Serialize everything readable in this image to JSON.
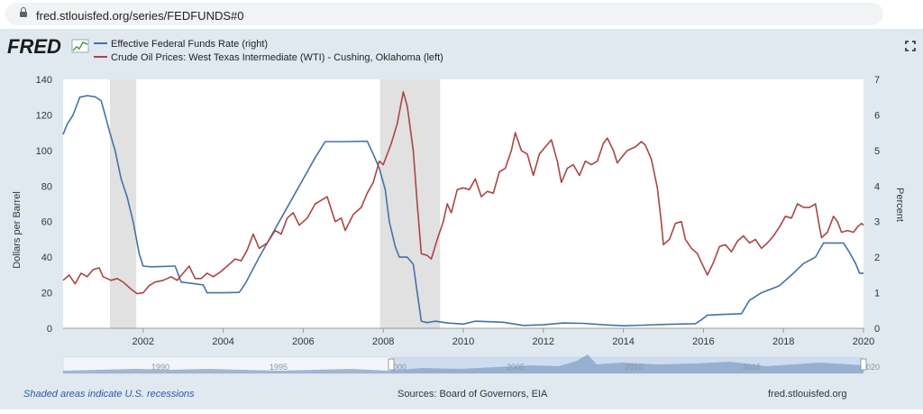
{
  "browser": {
    "url": "fred.stlouisfed.org/series/FEDFUNDS#0"
  },
  "header": {
    "logo_text": "FRED",
    "fullscreen_icon": "expand-icon"
  },
  "footer": {
    "recession_note": "Shaded areas indicate U.S. recessions",
    "sources": "Sources: Board of Governors, EIA",
    "site": "fred.stlouisfed.org"
  },
  "navigator": {
    "tick_labels": [
      "1990",
      "1995",
      "2000",
      "2005",
      "2010",
      "2015",
      "2020"
    ]
  },
  "colors": {
    "fedfunds": "#4572a7",
    "oil": "#aa4643",
    "recession": "#e1e1e1",
    "panel": "#e1e9f0"
  },
  "chart_data": {
    "type": "line",
    "x_ticks": [
      "2002",
      "2004",
      "2006",
      "2008",
      "2010",
      "2012",
      "2014",
      "2016",
      "2018",
      "2020"
    ],
    "y_left": {
      "label": "Dollars per Barrel",
      "ticks": [
        "0",
        "20",
        "40",
        "60",
        "80",
        "100",
        "120",
        "140"
      ],
      "range": [
        0,
        140
      ]
    },
    "y_right": {
      "label": "Percent",
      "ticks": [
        "0",
        "1",
        "2",
        "3",
        "4",
        "5",
        "6",
        "7"
      ],
      "range": [
        0,
        7
      ]
    },
    "x_range": [
      2000.0,
      2020.0
    ],
    "recessions": [
      [
        2001.17,
        2001.83
      ],
      [
        2007.92,
        2009.42
      ]
    ],
    "series": [
      {
        "name": "Effective Federal Funds Rate (right)",
        "axis": "right",
        "points": [
          [
            2000.0,
            5.45
          ],
          [
            2000.1,
            5.73
          ],
          [
            2000.25,
            6.0
          ],
          [
            2000.42,
            6.5
          ],
          [
            2000.6,
            6.54
          ],
          [
            2000.8,
            6.51
          ],
          [
            2000.95,
            6.4
          ],
          [
            2001.05,
            6.0
          ],
          [
            2001.17,
            5.5
          ],
          [
            2001.3,
            5.0
          ],
          [
            2001.45,
            4.2
          ],
          [
            2001.6,
            3.7
          ],
          [
            2001.75,
            3.0
          ],
          [
            2001.9,
            2.1
          ],
          [
            2002.0,
            1.75
          ],
          [
            2002.2,
            1.73
          ],
          [
            2002.5,
            1.74
          ],
          [
            2002.8,
            1.75
          ],
          [
            2002.95,
            1.3
          ],
          [
            2003.3,
            1.25
          ],
          [
            2003.5,
            1.22
          ],
          [
            2003.6,
            1.0
          ],
          [
            2004.0,
            1.0
          ],
          [
            2004.4,
            1.01
          ],
          [
            2004.55,
            1.25
          ],
          [
            2004.9,
            2.0
          ],
          [
            2005.2,
            2.6
          ],
          [
            2005.5,
            3.2
          ],
          [
            2005.8,
            3.8
          ],
          [
            2006.1,
            4.4
          ],
          [
            2006.3,
            4.8
          ],
          [
            2006.55,
            5.25
          ],
          [
            2007.0,
            5.25
          ],
          [
            2007.6,
            5.26
          ],
          [
            2007.75,
            4.9
          ],
          [
            2007.9,
            4.5
          ],
          [
            2008.05,
            3.9
          ],
          [
            2008.15,
            3.0
          ],
          [
            2008.3,
            2.3
          ],
          [
            2008.4,
            2.0
          ],
          [
            2008.6,
            2.0
          ],
          [
            2008.75,
            1.8
          ],
          [
            2008.85,
            1.0
          ],
          [
            2008.95,
            0.2
          ],
          [
            2009.1,
            0.16
          ],
          [
            2009.3,
            0.2
          ],
          [
            2009.6,
            0.15
          ],
          [
            2010.0,
            0.12
          ],
          [
            2010.3,
            0.2
          ],
          [
            2011.0,
            0.17
          ],
          [
            2011.5,
            0.08
          ],
          [
            2012.0,
            0.1
          ],
          [
            2012.5,
            0.15
          ],
          [
            2013.0,
            0.14
          ],
          [
            2013.5,
            0.1
          ],
          [
            2014.0,
            0.07
          ],
          [
            2014.5,
            0.09
          ],
          [
            2015.0,
            0.11
          ],
          [
            2015.8,
            0.13
          ],
          [
            2015.95,
            0.24
          ],
          [
            2016.1,
            0.37
          ],
          [
            2016.5,
            0.39
          ],
          [
            2016.95,
            0.41
          ],
          [
            2017.15,
            0.79
          ],
          [
            2017.45,
            1.0
          ],
          [
            2017.9,
            1.2
          ],
          [
            2018.2,
            1.5
          ],
          [
            2018.5,
            1.82
          ],
          [
            2018.8,
            2.0
          ],
          [
            2019.0,
            2.4
          ],
          [
            2019.5,
            2.4
          ],
          [
            2019.65,
            2.13
          ],
          [
            2019.8,
            1.83
          ],
          [
            2019.9,
            1.55
          ],
          [
            2020.0,
            1.55
          ]
        ]
      },
      {
        "name": "Crude Oil Prices: West Texas Intermediate (WTI) - Cushing, Oklahoma (left)",
        "axis": "left",
        "points": [
          [
            2000.0,
            27
          ],
          [
            2000.15,
            30
          ],
          [
            2000.3,
            25
          ],
          [
            2000.45,
            31
          ],
          [
            2000.6,
            29
          ],
          [
            2000.75,
            33
          ],
          [
            2000.9,
            34
          ],
          [
            2001.0,
            29
          ],
          [
            2001.2,
            27
          ],
          [
            2001.35,
            28
          ],
          [
            2001.5,
            26
          ],
          [
            2001.7,
            22
          ],
          [
            2001.85,
            19.5
          ],
          [
            2002.0,
            20
          ],
          [
            2002.15,
            24
          ],
          [
            2002.3,
            26
          ],
          [
            2002.5,
            27
          ],
          [
            2002.7,
            29
          ],
          [
            2002.85,
            27
          ],
          [
            2003.0,
            31
          ],
          [
            2003.15,
            35
          ],
          [
            2003.3,
            28
          ],
          [
            2003.45,
            28
          ],
          [
            2003.6,
            31
          ],
          [
            2003.75,
            29
          ],
          [
            2003.95,
            32
          ],
          [
            2004.15,
            36
          ],
          [
            2004.3,
            39
          ],
          [
            2004.45,
            38
          ],
          [
            2004.6,
            44
          ],
          [
            2004.75,
            53
          ],
          [
            2004.9,
            45
          ],
          [
            2005.1,
            48
          ],
          [
            2005.3,
            55
          ],
          [
            2005.45,
            53
          ],
          [
            2005.6,
            62
          ],
          [
            2005.75,
            65
          ],
          [
            2005.9,
            58
          ],
          [
            2006.1,
            62
          ],
          [
            2006.3,
            70
          ],
          [
            2006.45,
            72
          ],
          [
            2006.6,
            74
          ],
          [
            2006.8,
            60
          ],
          [
            2006.95,
            62
          ],
          [
            2007.05,
            55
          ],
          [
            2007.25,
            64
          ],
          [
            2007.45,
            68
          ],
          [
            2007.6,
            76
          ],
          [
            2007.75,
            82
          ],
          [
            2007.9,
            94
          ],
          [
            2008.0,
            92
          ],
          [
            2008.2,
            104
          ],
          [
            2008.35,
            115
          ],
          [
            2008.5,
            133
          ],
          [
            2008.6,
            125
          ],
          [
            2008.75,
            100
          ],
          [
            2008.85,
            70
          ],
          [
            2008.95,
            42
          ],
          [
            2009.1,
            41
          ],
          [
            2009.2,
            39
          ],
          [
            2009.35,
            50
          ],
          [
            2009.5,
            60
          ],
          [
            2009.6,
            70
          ],
          [
            2009.7,
            65
          ],
          [
            2009.85,
            78
          ],
          [
            2010.0,
            79
          ],
          [
            2010.15,
            78
          ],
          [
            2010.3,
            84
          ],
          [
            2010.45,
            74
          ],
          [
            2010.6,
            77
          ],
          [
            2010.75,
            76
          ],
          [
            2010.9,
            88
          ],
          [
            2011.05,
            90
          ],
          [
            2011.2,
            100
          ],
          [
            2011.3,
            110
          ],
          [
            2011.45,
            100
          ],
          [
            2011.6,
            98
          ],
          [
            2011.75,
            86
          ],
          [
            2011.9,
            98
          ],
          [
            2012.05,
            102
          ],
          [
            2012.2,
            106
          ],
          [
            2012.35,
            94
          ],
          [
            2012.45,
            82
          ],
          [
            2012.6,
            90
          ],
          [
            2012.75,
            92
          ],
          [
            2012.9,
            86
          ],
          [
            2013.05,
            94
          ],
          [
            2013.2,
            92
          ],
          [
            2013.35,
            94
          ],
          [
            2013.5,
            104
          ],
          [
            2013.6,
            107
          ],
          [
            2013.75,
            100
          ],
          [
            2013.85,
            93
          ],
          [
            2013.95,
            96
          ],
          [
            2014.1,
            100
          ],
          [
            2014.3,
            102
          ],
          [
            2014.45,
            105
          ],
          [
            2014.55,
            103
          ],
          [
            2014.7,
            95
          ],
          [
            2014.85,
            79
          ],
          [
            2014.95,
            59
          ],
          [
            2015.0,
            47
          ],
          [
            2015.15,
            50
          ],
          [
            2015.3,
            59
          ],
          [
            2015.45,
            60
          ],
          [
            2015.55,
            50
          ],
          [
            2015.7,
            45
          ],
          [
            2015.85,
            42
          ],
          [
            2015.95,
            37
          ],
          [
            2016.1,
            30
          ],
          [
            2016.25,
            37
          ],
          [
            2016.4,
            46
          ],
          [
            2016.55,
            47
          ],
          [
            2016.7,
            43
          ],
          [
            2016.85,
            49
          ],
          [
            2017.0,
            52
          ],
          [
            2017.15,
            48
          ],
          [
            2017.3,
            50
          ],
          [
            2017.45,
            45
          ],
          [
            2017.6,
            48
          ],
          [
            2017.75,
            52
          ],
          [
            2017.9,
            57
          ],
          [
            2018.05,
            63
          ],
          [
            2018.2,
            62
          ],
          [
            2018.35,
            70
          ],
          [
            2018.5,
            68
          ],
          [
            2018.65,
            68
          ],
          [
            2018.8,
            70
          ],
          [
            2018.9,
            57
          ],
          [
            2018.95,
            51
          ],
          [
            2019.1,
            54
          ],
          [
            2019.25,
            63
          ],
          [
            2019.35,
            60
          ],
          [
            2019.45,
            54
          ],
          [
            2019.6,
            55
          ],
          [
            2019.75,
            54
          ],
          [
            2019.85,
            57
          ],
          [
            2019.95,
            59
          ],
          [
            2020.0,
            58
          ]
        ]
      }
    ]
  }
}
